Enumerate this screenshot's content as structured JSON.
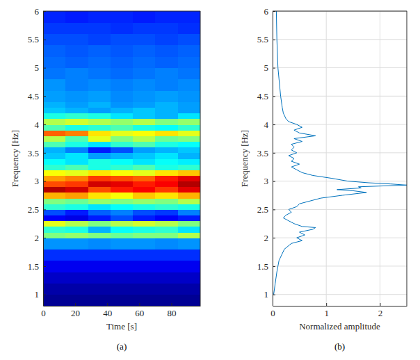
{
  "chart_data": [
    {
      "type": "heatmap",
      "panel": "(a)",
      "xlabel": "Time [s]",
      "ylabel": "Frequency [Hz]",
      "xlim": [
        0,
        98
      ],
      "xticks": [
        0,
        20,
        40,
        60,
        80
      ],
      "ylim": [
        0.8,
        6
      ],
      "yticks": [
        1,
        1.5,
        2,
        2.5,
        3,
        3.5,
        4,
        4.5,
        5,
        5.5,
        6
      ],
      "grid": false,
      "zlim": [
        0,
        1
      ],
      "x_bins": [
        0,
        14,
        28,
        42,
        56,
        70,
        84,
        98
      ],
      "y_bins": [
        0.8,
        1.0,
        1.2,
        1.4,
        1.6,
        1.8,
        2.0,
        2.1,
        2.2,
        2.3,
        2.4,
        2.5,
        2.6,
        2.7,
        2.8,
        2.9,
        3.0,
        3.1,
        3.2,
        3.3,
        3.4,
        3.5,
        3.6,
        3.7,
        3.8,
        3.9,
        4.0,
        4.1,
        4.2,
        4.3,
        4.4,
        4.6,
        4.8,
        5.0,
        5.2,
        5.4,
        5.6,
        5.8,
        6.0
      ],
      "cells": [
        [
          0.02,
          0.02,
          0.02,
          0.02,
          0.02,
          0.02,
          0.02
        ],
        [
          0.04,
          0.04,
          0.04,
          0.04,
          0.04,
          0.04,
          0.04
        ],
        [
          0.07,
          0.07,
          0.07,
          0.07,
          0.07,
          0.07,
          0.07
        ],
        [
          0.11,
          0.11,
          0.11,
          0.11,
          0.11,
          0.11,
          0.11
        ],
        [
          0.17,
          0.17,
          0.17,
          0.17,
          0.17,
          0.17,
          0.17
        ],
        [
          0.27,
          0.27,
          0.26,
          0.27,
          0.27,
          0.26,
          0.27
        ],
        [
          0.5,
          0.52,
          0.5,
          0.48,
          0.5,
          0.5,
          0.55
        ],
        [
          0.42,
          0.4,
          0.3,
          0.38,
          0.4,
          0.42,
          0.35
        ],
        [
          0.6,
          0.55,
          0.5,
          0.55,
          0.58,
          0.55,
          0.5
        ],
        [
          0.12,
          0.1,
          0.15,
          0.2,
          0.15,
          0.12,
          0.15
        ],
        [
          0.2,
          0.15,
          0.22,
          0.25,
          0.2,
          0.18,
          0.25
        ],
        [
          0.42,
          0.4,
          0.35,
          0.38,
          0.4,
          0.42,
          0.4
        ],
        [
          0.5,
          0.48,
          0.52,
          0.5,
          0.52,
          0.5,
          0.55
        ],
        [
          0.7,
          0.72,
          0.65,
          0.62,
          0.68,
          0.65,
          0.7
        ],
        [
          0.95,
          0.92,
          0.8,
          0.85,
          0.88,
          0.82,
          0.9
        ],
        [
          0.8,
          0.82,
          0.92,
          0.9,
          0.85,
          0.88,
          0.95
        ],
        [
          0.72,
          0.75,
          0.82,
          0.8,
          0.78,
          0.85,
          0.9
        ],
        [
          0.62,
          0.6,
          0.65,
          0.62,
          0.6,
          0.65,
          0.68
        ],
        [
          0.42,
          0.45,
          0.4,
          0.42,
          0.45,
          0.4,
          0.42
        ],
        [
          0.38,
          0.35,
          0.4,
          0.38,
          0.35,
          0.38,
          0.36
        ],
        [
          0.32,
          0.35,
          0.28,
          0.3,
          0.32,
          0.35,
          0.3
        ],
        [
          0.3,
          0.25,
          0.15,
          0.2,
          0.28,
          0.3,
          0.32
        ],
        [
          0.45,
          0.4,
          0.35,
          0.42,
          0.45,
          0.4,
          0.38
        ],
        [
          0.55,
          0.45,
          0.6,
          0.5,
          0.55,
          0.48,
          0.5
        ],
        [
          0.78,
          0.75,
          0.65,
          0.6,
          0.62,
          0.65,
          0.6
        ],
        [
          0.45,
          0.4,
          0.42,
          0.45,
          0.4,
          0.38,
          0.42
        ],
        [
          0.55,
          0.58,
          0.55,
          0.52,
          0.55,
          0.5,
          0.52
        ],
        [
          0.4,
          0.42,
          0.4,
          0.35,
          0.32,
          0.3,
          0.35
        ],
        [
          0.32,
          0.3,
          0.28,
          0.3,
          0.32,
          0.3,
          0.28
        ],
        [
          0.3,
          0.28,
          0.3,
          0.27,
          0.28,
          0.3,
          0.28
        ],
        [
          0.28,
          0.27,
          0.28,
          0.26,
          0.27,
          0.28,
          0.27
        ],
        [
          0.27,
          0.25,
          0.26,
          0.25,
          0.26,
          0.25,
          0.26
        ],
        [
          0.24,
          0.25,
          0.24,
          0.23,
          0.24,
          0.25,
          0.24
        ],
        [
          0.23,
          0.22,
          0.23,
          0.22,
          0.23,
          0.22,
          0.23
        ],
        [
          0.22,
          0.21,
          0.22,
          0.21,
          0.22,
          0.21,
          0.22
        ],
        [
          0.2,
          0.2,
          0.19,
          0.2,
          0.2,
          0.19,
          0.2
        ],
        [
          0.18,
          0.18,
          0.18,
          0.17,
          0.18,
          0.18,
          0.17
        ],
        [
          0.16,
          0.15,
          0.16,
          0.16,
          0.15,
          0.16,
          0.16
        ]
      ]
    },
    {
      "type": "line",
      "panel": "(b)",
      "xlabel": "Normalized amplitude",
      "ylabel": "Frequency [Hz]",
      "xlim": [
        0,
        2.5
      ],
      "xticks": [
        0,
        1,
        2
      ],
      "ylim": [
        0.8,
        6
      ],
      "yticks": [
        1,
        1.5,
        2,
        2.5,
        3,
        3.5,
        4,
        4.5,
        5,
        5.5,
        6
      ],
      "grid": true,
      "color": "#0072bd",
      "x": [
        0.02,
        0.05,
        0.08,
        0.12,
        0.22,
        0.35,
        0.55,
        0.45,
        0.6,
        0.5,
        0.75,
        0.8,
        0.55,
        0.4,
        0.3,
        0.2,
        0.25,
        0.35,
        0.3,
        0.45,
        0.5,
        0.7,
        0.9,
        1.3,
        1.75,
        1.5,
        1.2,
        1.65,
        1.6,
        2.5,
        2.2,
        1.8,
        1.4,
        1.1,
        0.75,
        0.55,
        0.45,
        0.35,
        0.5,
        0.35,
        0.4,
        0.3,
        0.45,
        0.35,
        0.4,
        0.35,
        0.55,
        0.4,
        0.8,
        0.5,
        0.4,
        0.55,
        0.45,
        0.3,
        0.25,
        0.2,
        0.18,
        0.15,
        0.12,
        0.1,
        0.08,
        0.07
      ],
      "values": [
        1.0,
        1.2,
        1.4,
        1.6,
        1.8,
        1.9,
        1.95,
        2.0,
        2.05,
        2.1,
        2.15,
        2.18,
        2.2,
        2.25,
        2.3,
        2.35,
        2.4,
        2.45,
        2.5,
        2.55,
        2.6,
        2.65,
        2.7,
        2.75,
        2.8,
        2.83,
        2.85,
        2.88,
        2.9,
        2.93,
        2.95,
        2.97,
        3.0,
        3.05,
        3.1,
        3.15,
        3.2,
        3.25,
        3.3,
        3.35,
        3.4,
        3.45,
        3.5,
        3.55,
        3.6,
        3.65,
        3.7,
        3.75,
        3.8,
        3.85,
        3.9,
        3.95,
        4.0,
        4.05,
        4.1,
        4.2,
        4.3,
        4.5,
        4.8,
        5.0,
        5.5,
        6.0
      ]
    }
  ]
}
